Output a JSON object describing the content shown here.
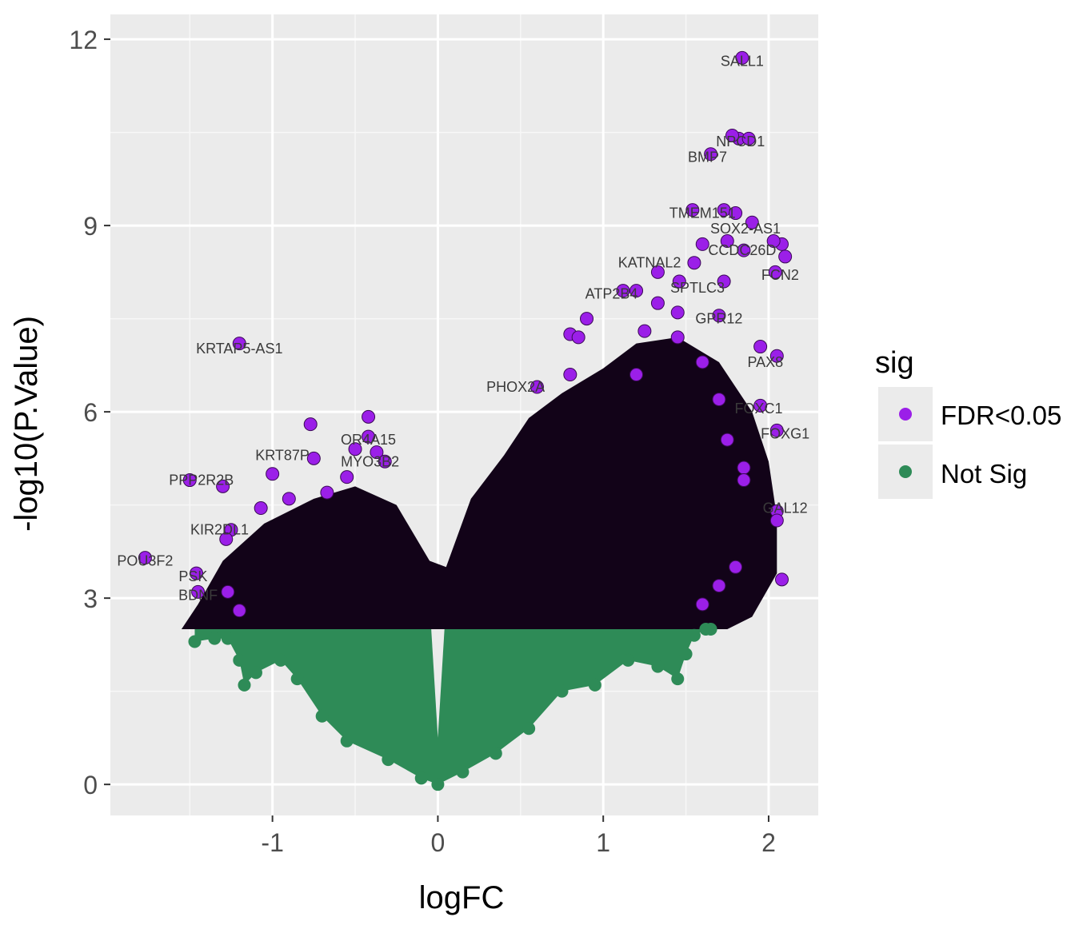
{
  "chart_data": {
    "type": "scatter",
    "title": "",
    "xlabel": "logFC",
    "ylabel": "-log10(P.Value)",
    "xlim": [
      -1.98,
      2.3
    ],
    "ylim": [
      -0.5,
      12.4
    ],
    "x_ticks": [
      "-1",
      "0",
      "1",
      "2"
    ],
    "x_tick_values": [
      -1,
      0,
      1,
      2
    ],
    "y_ticks": [
      "0",
      "3",
      "6",
      "9",
      "12"
    ],
    "y_tick_values": [
      0,
      3,
      6,
      9,
      12
    ],
    "grid": true,
    "panel_background": "#ebebeb",
    "legend": {
      "title": "sig",
      "position": "right",
      "entries": [
        {
          "label": "FDR<0.05",
          "color": "#9b1fe8"
        },
        {
          "label": "Not Sig",
          "color": "#2e8b57"
        }
      ]
    },
    "significance_threshold_y": 2.5,
    "series": [
      {
        "name": "FDR<0.05",
        "color": "#9b1fe8",
        "points": [
          [
            1.84,
            11.7
          ],
          [
            1.82,
            10.4
          ],
          [
            1.88,
            10.4
          ],
          [
            1.78,
            10.45
          ],
          [
            1.65,
            10.15
          ],
          [
            1.54,
            9.25
          ],
          [
            1.73,
            9.25
          ],
          [
            1.8,
            9.2
          ],
          [
            1.9,
            9.05
          ],
          [
            2.08,
            8.7
          ],
          [
            1.6,
            8.7
          ],
          [
            1.75,
            8.75
          ],
          [
            1.85,
            8.6
          ],
          [
            2.03,
            8.75
          ],
          [
            2.1,
            8.5
          ],
          [
            2.04,
            8.25
          ],
          [
            1.55,
            8.4
          ],
          [
            1.33,
            8.25
          ],
          [
            1.46,
            8.1
          ],
          [
            1.73,
            8.1
          ],
          [
            1.2,
            7.95
          ],
          [
            1.12,
            7.95
          ],
          [
            1.33,
            7.75
          ],
          [
            1.45,
            7.6
          ],
          [
            1.7,
            7.55
          ],
          [
            0.9,
            7.5
          ],
          [
            0.8,
            7.25
          ],
          [
            0.85,
            7.2
          ],
          [
            1.25,
            7.3
          ],
          [
            1.45,
            7.2
          ],
          [
            1.95,
            7.05
          ],
          [
            2.05,
            6.9
          ],
          [
            1.6,
            6.8
          ],
          [
            1.2,
            6.6
          ],
          [
            0.8,
            6.6
          ],
          [
            0.6,
            6.4
          ],
          [
            1.7,
            6.2
          ],
          [
            1.95,
            6.1
          ],
          [
            2.05,
            5.7
          ],
          [
            1.75,
            5.55
          ],
          [
            -1.2,
            7.1
          ],
          [
            -0.42,
            5.92
          ],
          [
            -0.77,
            5.8
          ],
          [
            -0.42,
            5.6
          ],
          [
            -0.5,
            5.4
          ],
          [
            -0.37,
            5.35
          ],
          [
            -0.75,
            5.25
          ],
          [
            -0.32,
            5.2
          ],
          [
            -1.0,
            5.0
          ],
          [
            -0.55,
            4.95
          ],
          [
            -1.5,
            4.9
          ],
          [
            -1.3,
            4.8
          ],
          [
            -0.9,
            4.6
          ],
          [
            -1.25,
            4.1
          ],
          [
            -1.28,
            3.95
          ],
          [
            -0.67,
            4.7
          ],
          [
            -1.07,
            4.45
          ],
          [
            -1.77,
            3.65
          ],
          [
            -1.46,
            3.4
          ],
          [
            -1.45,
            3.1
          ],
          [
            -1.27,
            3.1
          ],
          [
            1.85,
            5.1
          ],
          [
            1.85,
            4.9
          ],
          [
            2.05,
            4.4
          ],
          [
            2.05,
            4.25
          ],
          [
            2.08,
            3.3
          ],
          [
            1.8,
            3.5
          ],
          [
            1.7,
            3.2
          ],
          [
            1.6,
            2.9
          ],
          [
            -1.2,
            2.8
          ]
        ]
      },
      {
        "name": "Not Sig",
        "color": "#2e8b57",
        "points": [
          [
            -1.47,
            2.3
          ],
          [
            -1.35,
            2.35
          ],
          [
            -1.27,
            2.35
          ],
          [
            -1.2,
            2.0
          ],
          [
            -1.17,
            1.6
          ],
          [
            -1.1,
            1.8
          ],
          [
            -0.95,
            2.0
          ],
          [
            -0.85,
            1.7
          ],
          [
            -0.7,
            1.1
          ],
          [
            -0.55,
            0.7
          ],
          [
            -0.3,
            0.4
          ],
          [
            -0.1,
            0.1
          ],
          [
            0.0,
            0.0
          ],
          [
            0.15,
            0.2
          ],
          [
            0.35,
            0.5
          ],
          [
            0.55,
            0.9
          ],
          [
            0.75,
            1.5
          ],
          [
            0.95,
            1.6
          ],
          [
            1.15,
            2.0
          ],
          [
            1.33,
            1.9
          ],
          [
            1.45,
            1.7
          ],
          [
            1.5,
            2.1
          ],
          [
            1.55,
            2.4
          ],
          [
            1.62,
            2.5
          ],
          [
            1.65,
            2.5
          ]
        ]
      }
    ],
    "annotations": [
      {
        "text": "SALL1",
        "x": 1.84,
        "y": 11.65
      },
      {
        "text": "NPCD1",
        "x": 1.83,
        "y": 10.35
      },
      {
        "text": "BMP7",
        "x": 1.63,
        "y": 10.1
      },
      {
        "text": "TMEM151",
        "x": 1.6,
        "y": 9.2
      },
      {
        "text": "SOX2-AS1",
        "x": 1.86,
        "y": 8.95
      },
      {
        "text": "CCDC26D",
        "x": 1.84,
        "y": 8.6
      },
      {
        "text": "FCN2",
        "x": 2.07,
        "y": 8.2
      },
      {
        "text": "KATNAL2",
        "x": 1.28,
        "y": 8.4
      },
      {
        "text": "SPTLC3",
        "x": 1.57,
        "y": 8.0
      },
      {
        "text": "ATP2B4",
        "x": 1.05,
        "y": 7.9
      },
      {
        "text": "GPR12",
        "x": 1.7,
        "y": 7.5
      },
      {
        "text": "PAX8",
        "x": 1.98,
        "y": 6.8
      },
      {
        "text": "KRTAP5-AS1",
        "x": -1.2,
        "y": 7.02
      },
      {
        "text": "OR4A15",
        "x": -0.42,
        "y": 5.55
      },
      {
        "text": "KRT87P",
        "x": -0.94,
        "y": 5.3
      },
      {
        "text": "MYO3B2",
        "x": -0.41,
        "y": 5.2
      },
      {
        "text": "PPP2R2B",
        "x": -1.43,
        "y": 4.9
      },
      {
        "text": "KIR2DL1",
        "x": -1.32,
        "y": 4.1
      },
      {
        "text": "POU3F2",
        "x": -1.77,
        "y": 3.6
      },
      {
        "text": "PSK",
        "x": -1.48,
        "y": 3.35
      },
      {
        "text": "BDNF",
        "x": -1.45,
        "y": 3.05
      },
      {
        "text": "PHOX2A",
        "x": 0.47,
        "y": 6.4
      },
      {
        "text": "FOXC1",
        "x": 1.94,
        "y": 6.05
      },
      {
        "text": "FOXG1",
        "x": 2.1,
        "y": 5.65
      },
      {
        "text": "GAL12",
        "x": 2.1,
        "y": 4.45
      }
    ]
  }
}
